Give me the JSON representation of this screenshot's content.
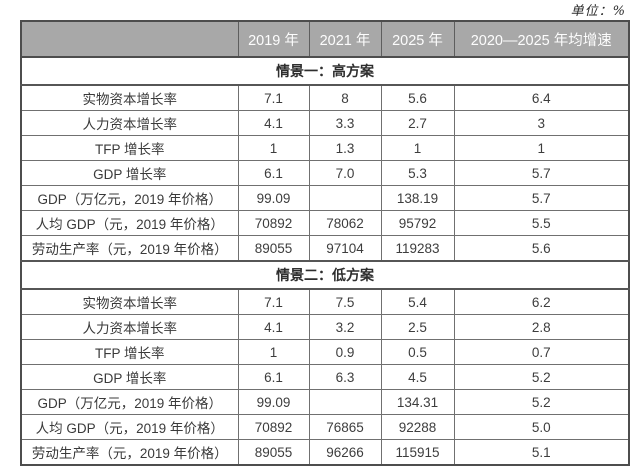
{
  "unit_label": "单位：%",
  "table": {
    "columns": [
      "",
      "2019 年",
      "2021 年",
      "2025 年",
      "2020—2025 年均增速"
    ],
    "sections": [
      {
        "title": "情景一：高方案",
        "rows": [
          {
            "label": "实物资本增长率",
            "values": [
              "7.1",
              "8",
              "5.6",
              "6.4"
            ]
          },
          {
            "label": "人力资本增长率",
            "values": [
              "4.1",
              "3.3",
              "2.7",
              "3"
            ]
          },
          {
            "label": "TFP 增长率",
            "values": [
              "1",
              "1.3",
              "1",
              "1"
            ]
          },
          {
            "label": "GDP 增长率",
            "values": [
              "6.1",
              "7.0",
              "5.3",
              "5.7"
            ]
          },
          {
            "label": "GDP（万亿元，2019 年价格）",
            "values": [
              "99.09",
              "",
              "138.19",
              "5.7"
            ]
          },
          {
            "label": "人均 GDP（元，2019 年价格）",
            "values": [
              "70892",
              "78062",
              "95792",
              "5.5"
            ]
          },
          {
            "label": "劳动生产率（元，2019 年价格）",
            "values": [
              "89055",
              "97104",
              "119283",
              "5.6"
            ]
          }
        ]
      },
      {
        "title": "情景二：低方案",
        "rows": [
          {
            "label": "实物资本增长率",
            "values": [
              "7.1",
              "7.5",
              "5.4",
              "6.2"
            ]
          },
          {
            "label": "人力资本增长率",
            "values": [
              "4.1",
              "3.2",
              "2.5",
              "2.8"
            ]
          },
          {
            "label": "TFP 增长率",
            "values": [
              "1",
              "0.9",
              "0.5",
              "0.7"
            ]
          },
          {
            "label": "GDP 增长率",
            "values": [
              "6.1",
              "6.3",
              "4.5",
              "5.2"
            ]
          },
          {
            "label": "GDP（万亿元，2019 年价格）",
            "values": [
              "99.09",
              "",
              "134.31",
              "5.2"
            ]
          },
          {
            "label": "人均 GDP（元，2019 年价格）",
            "values": [
              "70892",
              "76865",
              "92288",
              "5.0"
            ]
          },
          {
            "label": "劳动生产率（元，2019 年价格）",
            "values": [
              "89055",
              "96266",
              "115915",
              "5.1"
            ]
          }
        ]
      }
    ]
  }
}
